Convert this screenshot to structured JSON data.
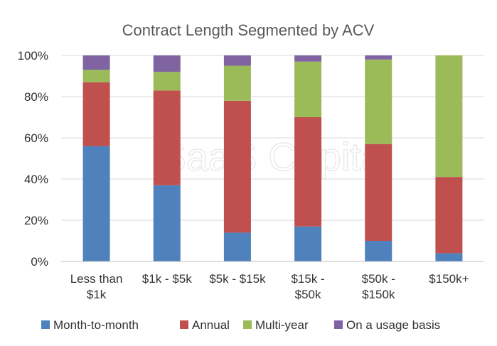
{
  "chart_data": {
    "type": "bar",
    "stacked": true,
    "title": "Contract Length Segmented by ACV",
    "watermark": "SaaS Capital",
    "categories": [
      [
        "Less than",
        "$1k"
      ],
      [
        "$1k - $5k"
      ],
      [
        "$5k - $15k"
      ],
      [
        "$15k -",
        "$50k"
      ],
      [
        "$50k -",
        "$150k"
      ],
      [
        "$150k+"
      ]
    ],
    "series": [
      {
        "name": "Month-to-month",
        "color": "#4f81bd",
        "values": [
          56,
          37,
          14,
          17,
          10,
          4
        ]
      },
      {
        "name": "Annual",
        "color": "#c0504d",
        "values": [
          31,
          46,
          64,
          53,
          47,
          37
        ]
      },
      {
        "name": "Multi-year",
        "color": "#9bbb59",
        "values": [
          6,
          9,
          17,
          27,
          41,
          59
        ]
      },
      {
        "name": "On a usage basis",
        "color": "#8064a2",
        "values": [
          7,
          8,
          5,
          3,
          2,
          0
        ]
      }
    ],
    "ylim": [
      0,
      100
    ],
    "yticks": [
      "0%",
      "20%",
      "40%",
      "60%",
      "80%",
      "100%"
    ],
    "grid": true,
    "legend_position": "bottom"
  }
}
